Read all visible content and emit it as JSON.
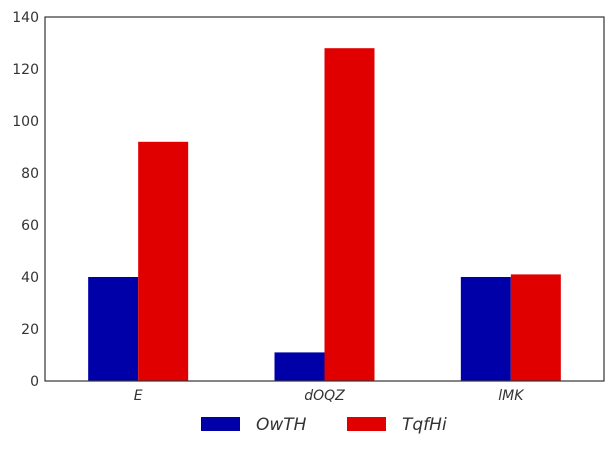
{
  "chart_data": {
    "type": "bar",
    "categories": [
      "E",
      "dOQZ",
      "lMK"
    ],
    "series": [
      {
        "name": "OwTH",
        "values": [
          40,
          11,
          40
        ],
        "color": "#0000a8"
      },
      {
        "name": "TqfHi",
        "values": [
          92,
          128,
          41
        ],
        "color": "#e00000"
      }
    ],
    "ylim": [
      0,
      140
    ],
    "yticks": [
      0,
      20,
      40,
      60,
      80,
      100,
      120,
      140
    ],
    "title": "",
    "xlabel": "",
    "ylabel": "",
    "grid": false,
    "legend": "bottom-center"
  }
}
